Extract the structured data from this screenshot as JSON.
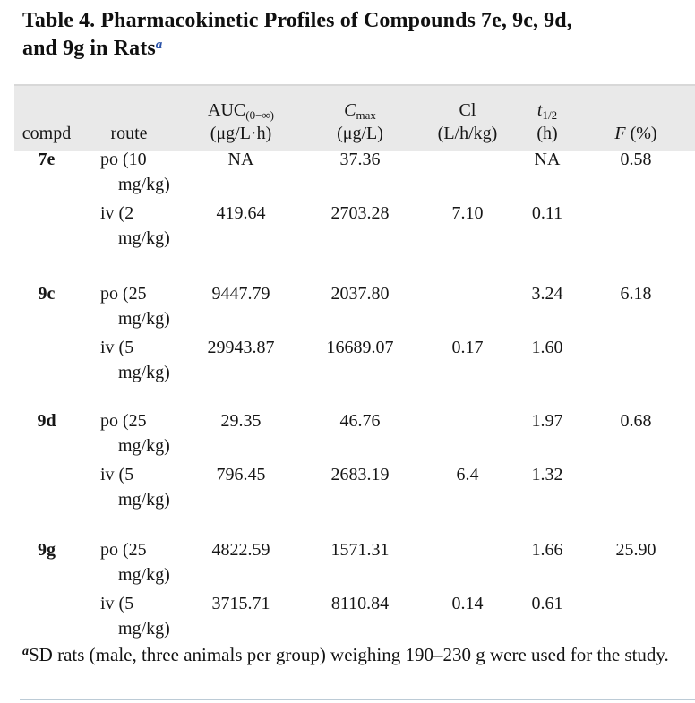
{
  "title": {
    "line1": "Table 4. Pharmacokinetic Profiles of Compounds 7e, 9c, 9d,",
    "line2": "and 9g in Rats",
    "marker": "a",
    "marker_color": "#2a52a8"
  },
  "table": {
    "header_background": "#e9e9e9",
    "columns": [
      {
        "id": "compd",
        "label": "compd"
      },
      {
        "id": "route",
        "label": "route"
      },
      {
        "id": "auc",
        "main": "AUC",
        "sub": "(0−∞)",
        "unit": "(μg/L·h)"
      },
      {
        "id": "cmax",
        "main": "C",
        "sub": "max",
        "unit": "(μg/L)"
      },
      {
        "id": "cl",
        "main": "Cl",
        "unit": "(L/h/kg)"
      },
      {
        "id": "thalf",
        "main": "t",
        "sub": "1/2",
        "unit": "(h)"
      },
      {
        "id": "f",
        "main": "F",
        "unit": "(%)"
      }
    ],
    "groups": [
      {
        "compd": "7e",
        "rows": [
          {
            "route_line1": "po (10",
            "route_line2": "mg/kg)",
            "auc": "NA",
            "cmax": "37.36",
            "cl": "",
            "thalf": "NA",
            "f": "0.58"
          },
          {
            "route_line1": "iv (2",
            "route_line2": "mg/kg)",
            "auc": "419.64",
            "cmax": "2703.28",
            "cl": "7.10",
            "thalf": "0.11",
            "f": ""
          }
        ]
      },
      {
        "compd": "9c",
        "rows": [
          {
            "route_line1": "po (25",
            "route_line2": "mg/kg)",
            "auc": "9447.79",
            "cmax": "2037.80",
            "cl": "",
            "thalf": "3.24",
            "f": "6.18"
          },
          {
            "route_line1": "iv (5",
            "route_line2": "mg/kg)",
            "auc": "29943.87",
            "cmax": "16689.07",
            "cl": "0.17",
            "thalf": "1.60",
            "f": ""
          }
        ]
      },
      {
        "compd": "9d",
        "rows": [
          {
            "route_line1": "po (25",
            "route_line2": "mg/kg)",
            "auc": "29.35",
            "cmax": "46.76",
            "cl": "",
            "thalf": "1.97",
            "f": "0.68"
          },
          {
            "route_line1": "iv (5",
            "route_line2": "mg/kg)",
            "auc": "796.45",
            "cmax": "2683.19",
            "cl": "6.4",
            "thalf": "1.32",
            "f": ""
          }
        ]
      },
      {
        "compd": "9g",
        "rows": [
          {
            "route_line1": "po (25",
            "route_line2": "mg/kg)",
            "auc": "4822.59",
            "cmax": "1571.31",
            "cl": "",
            "thalf": "1.66",
            "f": "25.90"
          },
          {
            "route_line1": "iv (5",
            "route_line2": "mg/kg)",
            "auc": "3715.71",
            "cmax": "8110.84",
            "cl": "0.14",
            "thalf": "0.61",
            "f": ""
          }
        ]
      }
    ]
  },
  "footnote": {
    "marker": "a",
    "text": "SD rats (male, three animals per group) weighing 190–230 g were used for the study."
  },
  "rules": {
    "bottom_rule_color": "#bccbd6",
    "header_rule_color": "#d8d8d8"
  }
}
